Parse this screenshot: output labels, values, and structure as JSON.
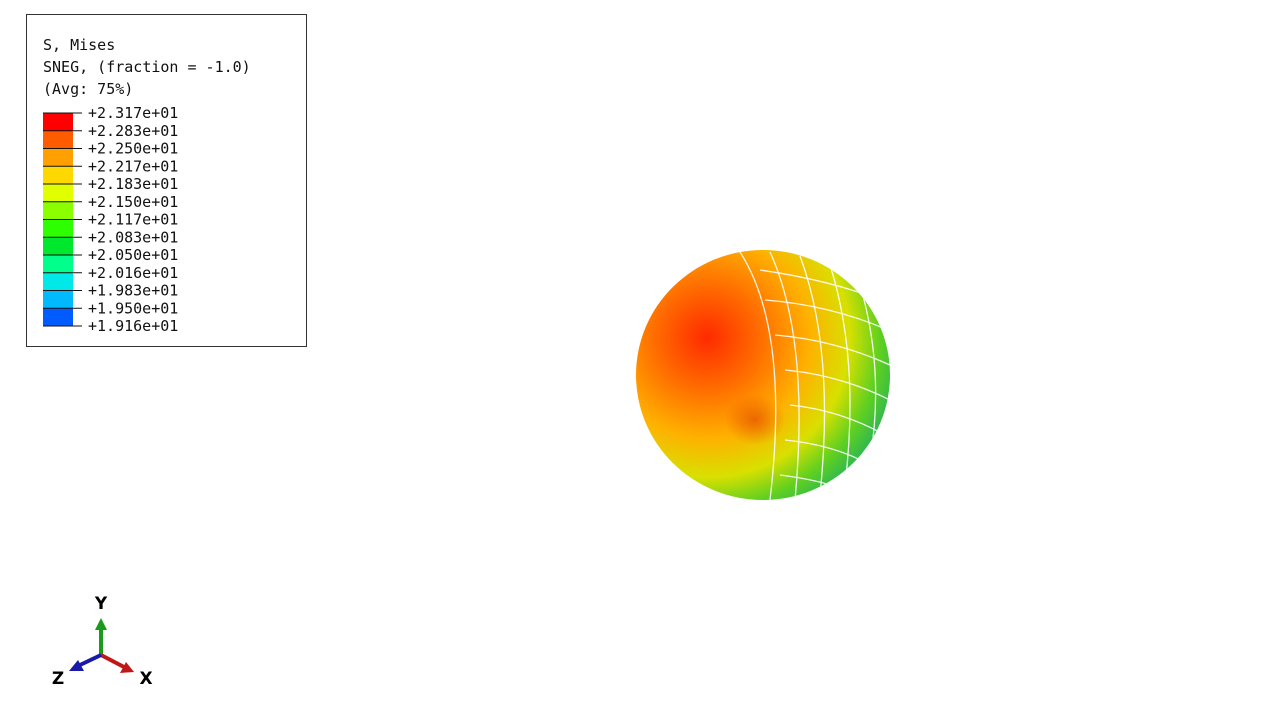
{
  "legend": {
    "title_lines": [
      "S, Mises",
      "SNEG, (fraction = -1.0)",
      "(Avg: 75%)"
    ],
    "labels": [
      "+2.317e+01",
      "+2.283e+01",
      "+2.250e+01",
      "+2.217e+01",
      "+2.183e+01",
      "+2.150e+01",
      "+2.117e+01",
      "+2.083e+01",
      "+2.050e+01",
      "+2.016e+01",
      "+1.983e+01",
      "+1.950e+01",
      "+1.916e+01"
    ],
    "colors": [
      "#ff0000",
      "#ff5c00",
      "#ffa000",
      "#ffd800",
      "#e0ff00",
      "#8bff00",
      "#2eff00",
      "#00e82e",
      "#00ff8b",
      "#00e8e8",
      "#00b9ff",
      "#005cff",
      "#0000ff"
    ]
  },
  "triad": {
    "y": "Y",
    "x": "X",
    "z": "Z"
  }
}
